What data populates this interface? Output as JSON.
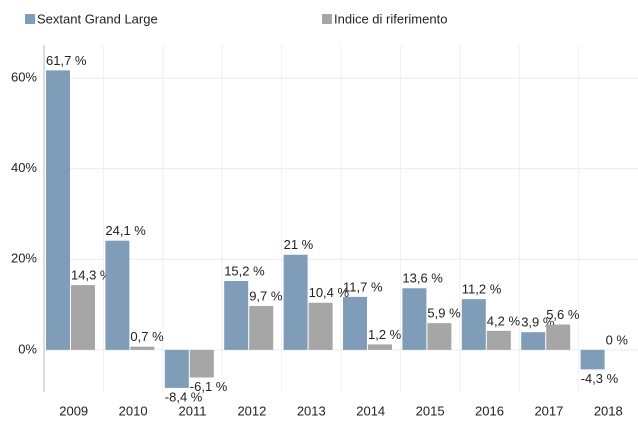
{
  "chart_data": {
    "type": "bar",
    "categories": [
      "2009",
      "2010",
      "2011",
      "2012",
      "2013",
      "2014",
      "2015",
      "2016",
      "2017",
      "2018"
    ],
    "series": [
      {
        "name": "Sextant Grand Large",
        "color": "#7f9db9",
        "values": [
          61.7,
          24.1,
          -8.4,
          15.2,
          21,
          11.7,
          13.6,
          11.2,
          3.9,
          -4.3
        ],
        "value_labels": [
          "61,7 %",
          "24,1 %",
          "-8,4 %",
          "15,2 %",
          "21 %",
          "11,7 %",
          "13,6 %",
          "11,2 %",
          "3,9 %",
          "-4,3 %"
        ]
      },
      {
        "name": "Indice di riferimento",
        "color": "#a6a6a6",
        "values": [
          14.3,
          0.7,
          -6.1,
          9.7,
          10.4,
          1.2,
          5.9,
          4.2,
          5.6,
          0
        ],
        "value_labels": [
          "14,3 %",
          "0,7 %",
          "-6,1 %",
          "9,7 %",
          "10,4 %",
          "1,2 %",
          "5,9 %",
          "4,2 %",
          "5,6 %",
          "0 %"
        ]
      }
    ],
    "ylim": [
      -9.3,
      67.3
    ],
    "yticks": [
      {
        "value": 0,
        "label": "0%"
      },
      {
        "value": 20,
        "label": "20%"
      },
      {
        "value": 40,
        "label": "40%"
      },
      {
        "value": 60,
        "label": "60%"
      }
    ],
    "grid": true,
    "legend": "top"
  }
}
